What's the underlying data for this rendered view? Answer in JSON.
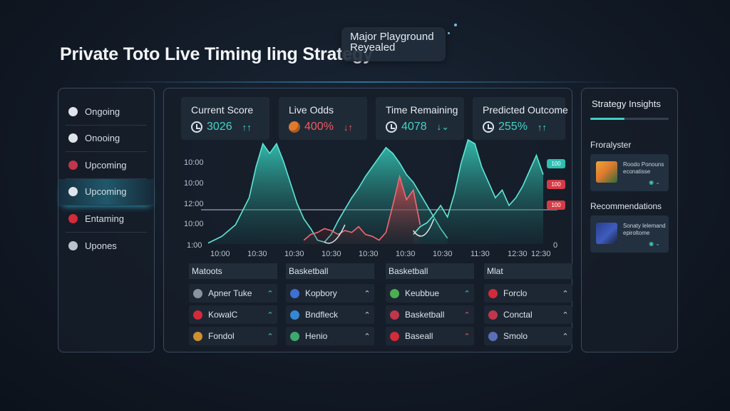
{
  "title": "Private Toto Live Timing ling Strategy",
  "tooltip": {
    "line1": "Major Playground",
    "line2": "Reyealed"
  },
  "sidebar": {
    "items": [
      {
        "label": "Ongoing",
        "icon": "soccer-ball-icon",
        "color": "#e0e4ea"
      },
      {
        "label": "Onooing",
        "icon": "basketball-icon",
        "color": "#e0e4ea"
      },
      {
        "label": "Upcoming",
        "icon": "uk-flag-icon",
        "color": "#c0364a"
      },
      {
        "label": "Upcoming",
        "icon": "compass-icon",
        "color": "#e0e4ea",
        "active": true
      },
      {
        "label": "Entaming",
        "icon": "flag-icon",
        "color": "#d22b3a"
      },
      {
        "label": "Upones",
        "icon": "gear-icon",
        "color": "#b9c3ce"
      }
    ]
  },
  "metrics": [
    {
      "title": "Current Score",
      "value": "3026",
      "arrow": "↑↑",
      "value_color": "#43d3c6",
      "arrow_color": "#43d3c6"
    },
    {
      "title": "Live Odds",
      "value": "400%",
      "arrow": "↓↑",
      "value_color": "#ef5a62",
      "arrow_color": "#ef5a62"
    },
    {
      "title": "Time Remaining",
      "value": "4078",
      "arrow": "↓⌄",
      "value_color": "#43d3c6",
      "arrow_color": "#43d3c6"
    },
    {
      "title": "Predicted Outcome",
      "value": "255%",
      "arrow": "↑↑",
      "value_color": "#43d3c6",
      "arrow_color": "#43d3c6"
    }
  ],
  "chart_data": {
    "type": "area",
    "y_tick_labels": [
      "10:00",
      "10:00",
      "12:00",
      "10:00",
      "1:00"
    ],
    "x_tick_labels": [
      "10:00",
      "10:30",
      "10:30",
      "10:30",
      "10:30",
      "10:30",
      "10:30",
      "11:30",
      "12:30",
      "12:30"
    ],
    "right_axis_label": "0",
    "series": [
      {
        "name": "teal",
        "color": "#38d6c2",
        "x": [
          0,
          4,
          8,
          12,
          14,
          16,
          18,
          20,
          22,
          24,
          26,
          28,
          30,
          32,
          34,
          36,
          38,
          40,
          42,
          44,
          46,
          48,
          50,
          52,
          54,
          56,
          58,
          60,
          62,
          64,
          66,
          68,
          70
        ],
        "values": [
          1,
          8,
          20,
          48,
          80,
          104,
          94,
          104,
          86,
          64,
          42,
          26,
          16,
          4,
          2,
          10,
          24,
          36,
          48,
          58,
          70,
          80,
          90,
          100,
          94,
          84,
          72,
          64,
          52,
          40,
          28,
          16,
          6
        ]
      },
      {
        "name": "red",
        "color": "#e0474f",
        "x": [
          28,
          30,
          32,
          34,
          36,
          38,
          40,
          42,
          44,
          46,
          48,
          50,
          52,
          54,
          56,
          58,
          60,
          62
        ],
        "values": [
          4,
          10,
          12,
          16,
          14,
          10,
          14,
          12,
          18,
          10,
          8,
          4,
          12,
          40,
          70,
          46,
          56,
          20
        ]
      },
      {
        "name": "right-teal",
        "color": "#38d6c2",
        "x": [
          60,
          62,
          64,
          66,
          68,
          70,
          72,
          74,
          76,
          78,
          80,
          82,
          84,
          86,
          88,
          90,
          92,
          94,
          96,
          98
        ],
        "values": [
          10,
          18,
          22,
          30,
          40,
          28,
          52,
          84,
          108,
          104,
          80,
          64,
          48,
          56,
          40,
          48,
          60,
          76,
          92,
          72
        ]
      }
    ],
    "badges": [
      {
        "label": "100",
        "color": "#2fbfb3"
      },
      {
        "label": "100",
        "color": "#d53b46"
      },
      {
        "label": "100",
        "color": "#d53b46"
      }
    ]
  },
  "lists": [
    {
      "header": "Matoots",
      "rows": [
        {
          "label": "Apner Tuke",
          "icon": "soccer-ball-icon",
          "chev": "⌃",
          "chev_color": "#45d0b5",
          "icon_color": "#8a94a1"
        },
        {
          "label": "KowalC",
          "icon": "flag-icon",
          "chev": "⌃",
          "chev_color": "#45d0b5",
          "icon_color": "#d22b3a"
        },
        {
          "label": "Fondol",
          "icon": "badge-icon",
          "chev": "⌃",
          "chev_color": "#45d0b5",
          "icon_color": "#d18f30"
        }
      ]
    },
    {
      "header": "Basketball",
      "rows": [
        {
          "label": "Kopbory",
          "icon": "shield-icon",
          "chev": "⌃",
          "chev_color": "#c9d3dd",
          "icon_color": "#3f6fd0"
        },
        {
          "label": "Bndfleck",
          "icon": "shield-icon",
          "chev": "⌃",
          "chev_color": "#c9d3dd",
          "icon_color": "#3587d6"
        },
        {
          "label": "Henio",
          "icon": "shield-icon",
          "chev": "⌃",
          "chev_color": "#c9d3dd",
          "icon_color": "#3fa86d"
        }
      ]
    },
    {
      "header": "Basketball",
      "rows": [
        {
          "label": "Keubbue",
          "icon": "shield-icon",
          "chev": "⌃",
          "chev_color": "#45d0b5",
          "icon_color": "#4cae50"
        },
        {
          "label": "Basketball",
          "icon": "flag-icon",
          "chev": "⌃",
          "chev_color": "#ef5a62",
          "icon_color": "#c0364a"
        },
        {
          "label": "Baseall",
          "icon": "shield-icon",
          "chev": "⌃",
          "chev_color": "#ef5a62",
          "icon_color": "#d22b3a"
        }
      ]
    },
    {
      "header": "Mlat",
      "rows": [
        {
          "label": "Forclo",
          "icon": "flag-icon",
          "chev": "⌃",
          "chev_color": "#c9d3dd",
          "icon_color": "#d22b3a"
        },
        {
          "label": "Conctal",
          "icon": "flag-icon",
          "chev": "⌃",
          "chev_color": "#c9d3dd",
          "icon_color": "#c0364a"
        },
        {
          "label": "Smolo",
          "icon": "flag-icon",
          "chev": "⌃",
          "chev_color": "#c9d3dd",
          "icon_color": "#5b6fb8"
        }
      ]
    }
  ],
  "insights": {
    "title": "Strategy Insights",
    "section1": "Froralyster",
    "card1_text": "Roodo Ponouns econatisse",
    "section2": "Recommendations",
    "card2_text": "Sonaty lelemand epiroltome",
    "card_control": "◉ ⌄"
  }
}
